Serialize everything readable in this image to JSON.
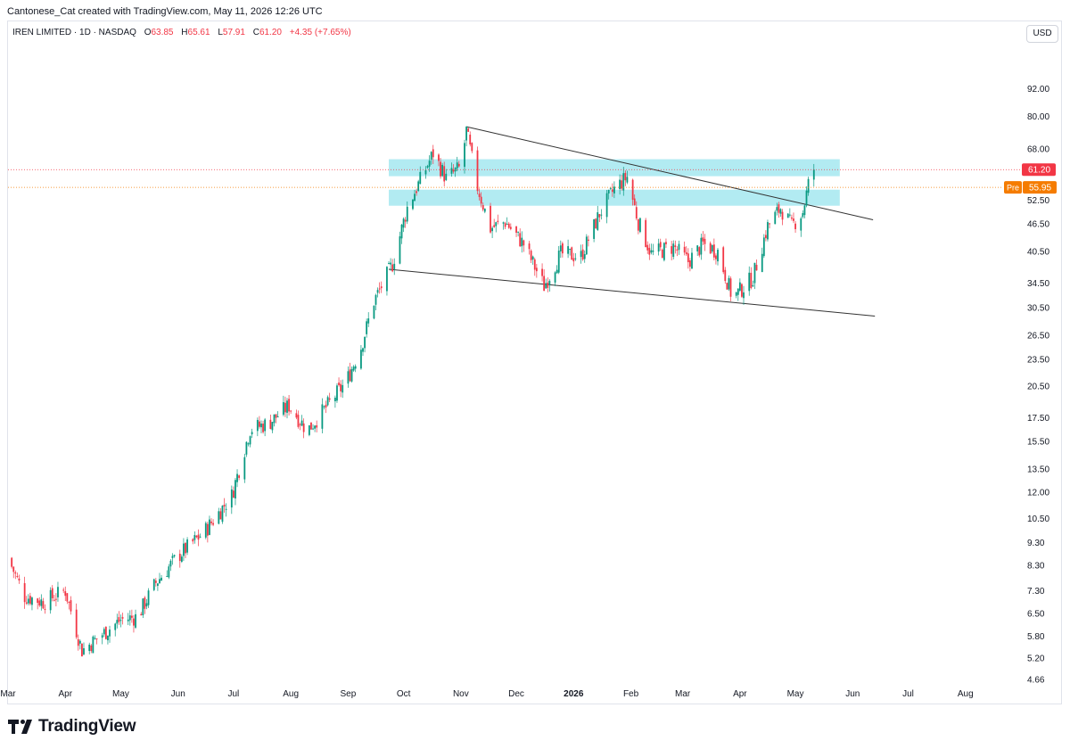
{
  "header": {
    "credit": "Cantonese_Cat created with TradingView.com, May 11, 2026 12:26 UTC",
    "symbol": "IREN LIMITED · 1D · NASDAQ",
    "o_label": "O",
    "o": "63.85",
    "h_label": "H",
    "h": "65.61",
    "l_label": "L",
    "l": "57.91",
    "c_label": "C",
    "c": "61.20",
    "change": "+4.35 (+7.65%)"
  },
  "currency": "USD",
  "footer": {
    "brand": "TradingView"
  },
  "colors": {
    "up": "#089981",
    "down": "#f23645",
    "zone": "#b2ebf2",
    "pre": "#f57c00",
    "trendline": "#333333"
  },
  "chart_data": {
    "type": "candlestick",
    "y_scale": "log",
    "y_ticks": [
      "92.00",
      "80.00",
      "68.00",
      "52.50",
      "46.50",
      "40.50",
      "34.50",
      "30.50",
      "26.50",
      "23.50",
      "20.50",
      "17.50",
      "15.50",
      "13.50",
      "12.00",
      "10.50",
      "9.30",
      "8.30",
      "7.30",
      "6.50",
      "5.80",
      "5.20",
      "4.66"
    ],
    "x_labels": [
      {
        "label": "Mar",
        "date": "2025-03-01"
      },
      {
        "label": "Apr",
        "date": "2025-04-01"
      },
      {
        "label": "May",
        "date": "2025-05-01"
      },
      {
        "label": "Jun",
        "date": "2025-06-01"
      },
      {
        "label": "Jul",
        "date": "2025-07-01"
      },
      {
        "label": "Aug",
        "date": "2025-08-01"
      },
      {
        "label": "Sep",
        "date": "2025-09-01"
      },
      {
        "label": "Oct",
        "date": "2025-10-01"
      },
      {
        "label": "Nov",
        "date": "2025-11-01"
      },
      {
        "label": "Dec",
        "date": "2025-12-01"
      },
      {
        "label": "2026",
        "date": "2026-01-01",
        "bold": true
      },
      {
        "label": "Feb",
        "date": "2026-02-01"
      },
      {
        "label": "Mar",
        "date": "2026-03-01"
      },
      {
        "label": "Apr",
        "date": "2026-04-01"
      },
      {
        "label": "May",
        "date": "2026-05-01"
      },
      {
        "label": "Jun",
        "date": "2026-06-01"
      },
      {
        "label": "Jul",
        "date": "2026-07-01"
      },
      {
        "label": "Aug",
        "date": "2026-08-01"
      }
    ],
    "x_range": [
      "2025-03-01",
      "2026-08-18"
    ],
    "y_range": [
      4.6,
      110
    ],
    "price_path": [
      {
        "date": "2025-03-01",
        "close": 8.6
      },
      {
        "date": "2025-03-10",
        "close": 7.1
      },
      {
        "date": "2025-03-20",
        "close": 6.9
      },
      {
        "date": "2025-04-01",
        "close": 7.3
      },
      {
        "date": "2025-04-10",
        "close": 5.4
      },
      {
        "date": "2025-04-22",
        "close": 5.9
      },
      {
        "date": "2025-05-01",
        "close": 6.3
      },
      {
        "date": "2025-05-10",
        "close": 6.4
      },
      {
        "date": "2025-05-20",
        "close": 7.6
      },
      {
        "date": "2025-06-01",
        "close": 8.7
      },
      {
        "date": "2025-06-15",
        "close": 9.8
      },
      {
        "date": "2025-06-30",
        "close": 11.8
      },
      {
        "date": "2025-07-10",
        "close": 16.5
      },
      {
        "date": "2025-07-20",
        "close": 17.0
      },
      {
        "date": "2025-07-31",
        "close": 18.6
      },
      {
        "date": "2025-08-10",
        "close": 16.4
      },
      {
        "date": "2025-08-20",
        "close": 18.4
      },
      {
        "date": "2025-08-31",
        "close": 21.0
      },
      {
        "date": "2025-09-08",
        "close": 25.0
      },
      {
        "date": "2025-09-15",
        "close": 31.5
      },
      {
        "date": "2025-09-25",
        "close": 38.0
      },
      {
        "date": "2025-10-03",
        "close": 50.5
      },
      {
        "date": "2025-10-10",
        "close": 58.0
      },
      {
        "date": "2025-10-17",
        "close": 66.5
      },
      {
        "date": "2025-10-24",
        "close": 58.5
      },
      {
        "date": "2025-11-01",
        "close": 62.0
      },
      {
        "date": "2025-11-04",
        "close": 74.5
      },
      {
        "date": "2025-11-10",
        "close": 56.0
      },
      {
        "date": "2025-11-17",
        "close": 45.5
      },
      {
        "date": "2025-11-25",
        "close": 47.0
      },
      {
        "date": "2025-12-05",
        "close": 42.0
      },
      {
        "date": "2025-12-16",
        "close": 34.0
      },
      {
        "date": "2025-12-25",
        "close": 40.0
      },
      {
        "date": "2026-01-05",
        "close": 39.5
      },
      {
        "date": "2026-01-15",
        "close": 49.0
      },
      {
        "date": "2026-01-23",
        "close": 55.5
      },
      {
        "date": "2026-01-30",
        "close": 59.0
      },
      {
        "date": "2026-02-05",
        "close": 47.0
      },
      {
        "date": "2026-02-12",
        "close": 40.0
      },
      {
        "date": "2026-02-24",
        "close": 41.5
      },
      {
        "date": "2026-03-04",
        "close": 38.5
      },
      {
        "date": "2026-03-12",
        "close": 42.0
      },
      {
        "date": "2026-03-20",
        "close": 40.5
      },
      {
        "date": "2026-03-28",
        "close": 32.0
      },
      {
        "date": "2026-04-08",
        "close": 35.5
      },
      {
        "date": "2026-04-16",
        "close": 46.0
      },
      {
        "date": "2026-04-23",
        "close": 50.5
      },
      {
        "date": "2026-04-29",
        "close": 46.0
      },
      {
        "date": "2026-05-05",
        "close": 49.5
      },
      {
        "date": "2026-05-08",
        "close": 56.8
      },
      {
        "date": "2026-05-11",
        "close": 61.2
      }
    ],
    "zones": [
      {
        "low": 59.2,
        "high": 64.5
      },
      {
        "low": 51.0,
        "high": 55.3
      }
    ],
    "trendlines": [
      {
        "from": {
          "date": "2025-11-04",
          "value": 76.0
        },
        "to": {
          "date": "2026-06-12",
          "value": 47.5
        }
      },
      {
        "from": {
          "date": "2025-09-23",
          "value": 37.0
        },
        "to": {
          "date": "2026-06-13",
          "value": 29.2
        }
      }
    ],
    "last_price": {
      "value": 61.2,
      "label": "61.20"
    },
    "premarket": {
      "tag": "Pre",
      "value": 55.95,
      "label": "55.95"
    }
  }
}
